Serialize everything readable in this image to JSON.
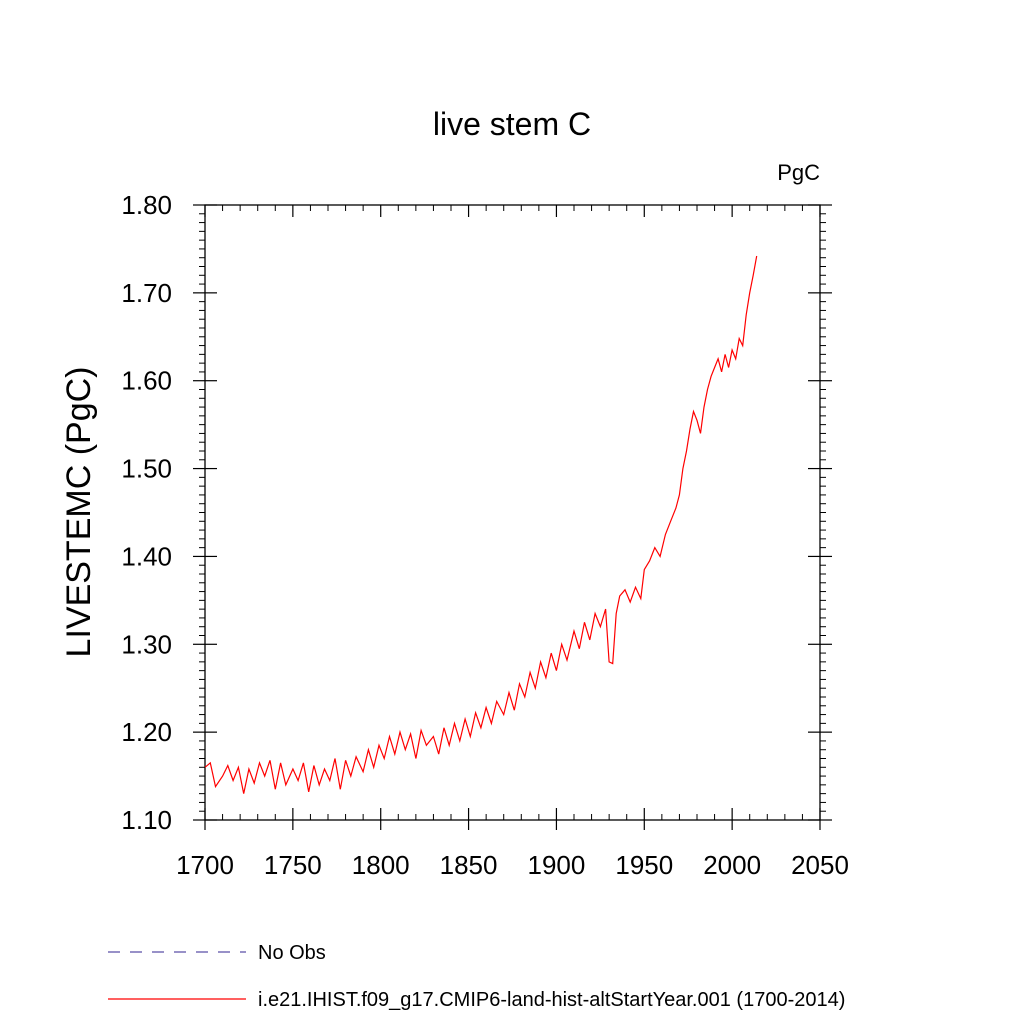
{
  "chart_data": {
    "type": "line",
    "title": "live stem C",
    "units_label": "PgC",
    "ylabel": "LIVESTEMC  (PgC)",
    "xlabel": "",
    "xlim": [
      1700,
      2050
    ],
    "ylim": [
      1.1,
      1.8
    ],
    "x_ticks": [
      "1700",
      "1750",
      "1800",
      "1850",
      "1900",
      "1950",
      "2000",
      "2050"
    ],
    "y_ticks": [
      "1.10",
      "1.20",
      "1.30",
      "1.40",
      "1.50",
      "1.60",
      "1.70",
      "1.80"
    ],
    "x_tick_values": [
      1700,
      1750,
      1800,
      1850,
      1900,
      1950,
      2000,
      2050
    ],
    "y_tick_values": [
      1.1,
      1.2,
      1.3,
      1.4,
      1.5,
      1.6,
      1.7,
      1.8
    ],
    "grid": false,
    "legend_position": "bottom",
    "series": [
      {
        "name": "No Obs",
        "color": "#5b4fa8",
        "dash": "dashed",
        "x": [],
        "y": []
      },
      {
        "name": "i.e21.IHIST.f09_g17.CMIP6-land-hist-altStartYear.001 (1700-2014)",
        "color": "#ff0000",
        "dash": "solid",
        "x": [
          1700,
          1703,
          1706,
          1710,
          1713,
          1716,
          1719,
          1722,
          1725,
          1728,
          1731,
          1734,
          1737,
          1740,
          1743,
          1746,
          1750,
          1753,
          1756,
          1759,
          1762,
          1765,
          1768,
          1771,
          1774,
          1777,
          1780,
          1783,
          1786,
          1790,
          1793,
          1796,
          1799,
          1802,
          1805,
          1808,
          1811,
          1814,
          1817,
          1820,
          1823,
          1826,
          1830,
          1833,
          1836,
          1839,
          1842,
          1845,
          1848,
          1851,
          1854,
          1857,
          1860,
          1863,
          1866,
          1870,
          1873,
          1876,
          1879,
          1882,
          1885,
          1888,
          1891,
          1894,
          1897,
          1900,
          1903,
          1906,
          1910,
          1913,
          1916,
          1919,
          1922,
          1925,
          1928,
          1930,
          1932,
          1934,
          1936,
          1939,
          1942,
          1945,
          1948,
          1950,
          1953,
          1956,
          1959,
          1962,
          1965,
          1968,
          1970,
          1972,
          1974,
          1976,
          1978,
          1980,
          1982,
          1984,
          1986,
          1988,
          1990,
          1992,
          1994,
          1996,
          1998,
          2000,
          2002,
          2004,
          2006,
          2008,
          2010,
          2012,
          2014
        ],
        "y": [
          1.16,
          1.165,
          1.138,
          1.15,
          1.162,
          1.145,
          1.16,
          1.13,
          1.158,
          1.142,
          1.165,
          1.15,
          1.168,
          1.135,
          1.165,
          1.14,
          1.158,
          1.145,
          1.165,
          1.132,
          1.162,
          1.14,
          1.158,
          1.145,
          1.17,
          1.135,
          1.168,
          1.15,
          1.172,
          1.155,
          1.18,
          1.16,
          1.185,
          1.17,
          1.195,
          1.175,
          1.2,
          1.18,
          1.198,
          1.17,
          1.202,
          1.185,
          1.195,
          1.175,
          1.205,
          1.185,
          1.21,
          1.19,
          1.215,
          1.195,
          1.222,
          1.205,
          1.228,
          1.21,
          1.235,
          1.22,
          1.245,
          1.225,
          1.255,
          1.24,
          1.268,
          1.25,
          1.28,
          1.262,
          1.29,
          1.27,
          1.3,
          1.282,
          1.315,
          1.295,
          1.325,
          1.305,
          1.335,
          1.32,
          1.34,
          1.28,
          1.278,
          1.335,
          1.355,
          1.362,
          1.348,
          1.365,
          1.352,
          1.385,
          1.395,
          1.41,
          1.4,
          1.425,
          1.44,
          1.455,
          1.47,
          1.5,
          1.52,
          1.545,
          1.565,
          1.555,
          1.54,
          1.57,
          1.59,
          1.605,
          1.615,
          1.625,
          1.61,
          1.63,
          1.615,
          1.635,
          1.625,
          1.648,
          1.64,
          1.675,
          1.7,
          1.72,
          1.742
        ]
      }
    ]
  }
}
